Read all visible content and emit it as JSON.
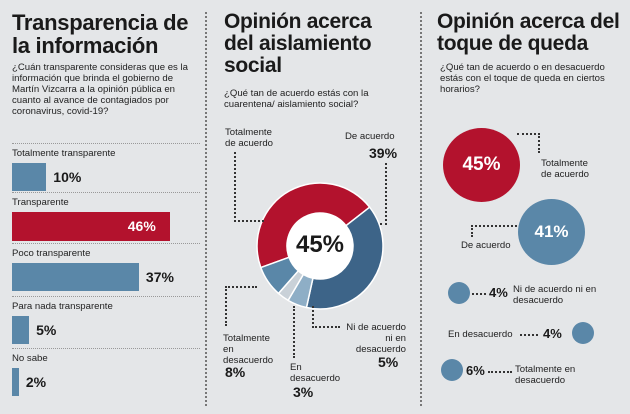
{
  "colors": {
    "red": "#b3122d",
    "blue": "#5a87a8",
    "dark_blue": "#3d6488",
    "light_blue": "#8eaec6",
    "gray": "#c9d1d8",
    "background": "#e4e6e8"
  },
  "chart_data": [
    {
      "type": "bar",
      "orientation": "horizontal",
      "title": "Transparencia de la información",
      "subtitle": "¿Cuán transparente consideras que es la información que brinda el gobierno de Martín Vizcarra a la opinión pública en cuanto al avance de contagiados por coronavirus, covid-19?",
      "categories": [
        "Totalmente transparente",
        "Transparente",
        "Poco transparente",
        "Para nada transparente",
        "No sabe"
      ],
      "values": [
        10,
        46,
        37,
        5,
        2
      ],
      "labels": [
        "10%",
        "46%",
        "37%",
        "5%",
        "2%"
      ],
      "highlight": "Transparente"
    },
    {
      "type": "pie",
      "variant": "donut",
      "title": "Opinión acerca del aislamiento social",
      "subtitle": "¿Qué tan de acuerdo estás con la cuarentena/ aislamiento social?",
      "center_label": "45%",
      "categories": [
        "Totalmente de acuerdo",
        "De acuerdo",
        "Ni de acuerdo ni en desacuerdo",
        "En desacuerdo",
        "Totalmente en desacuerdo"
      ],
      "values": [
        45,
        39,
        5,
        3,
        8
      ],
      "labels": [
        "45%",
        "39%",
        "5%",
        "3%",
        "8%"
      ]
    },
    {
      "type": "bubble",
      "title": "Opinión acerca del toque de queda",
      "subtitle": "¿Qué tan de acuerdo o en desacuerdo estás con el toque de queda en ciertos horarios?",
      "categories": [
        "Totalmente de acuerdo",
        "De acuerdo",
        "Ni de acuerdo ni en desacuerdo",
        "En desacuerdo",
        "Totalmente en desacuerdo"
      ],
      "values": [
        45,
        41,
        4,
        4,
        6
      ],
      "labels": [
        "45%",
        "41%",
        "4%",
        "4%",
        "6%"
      ]
    }
  ]
}
